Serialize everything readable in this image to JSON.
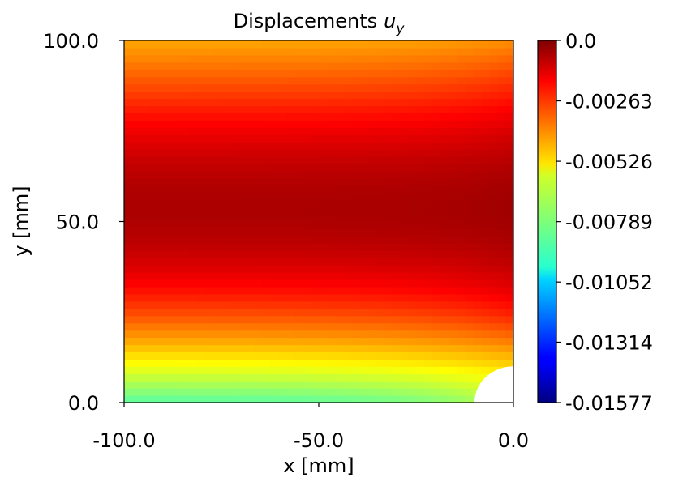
{
  "chart_data": {
    "type": "heatmap",
    "title": "Displacements",
    "title_symbol": "u",
    "title_subscript": "y",
    "xlabel": "x [mm]",
    "ylabel": "y [mm]",
    "xlim": [
      -100.0,
      0.0
    ],
    "ylim": [
      0.0,
      100.0
    ],
    "xticks": [
      -100.0,
      -50.0,
      0.0
    ],
    "xtick_labels": [
      "-100.0",
      "-50.0",
      "0.0"
    ],
    "yticks": [
      0.0,
      50.0,
      100.0
    ],
    "ytick_labels": [
      "0.0",
      "50.0",
      "100.0"
    ],
    "colormap": "jet",
    "color_range": [
      -0.01577,
      0.0
    ],
    "colorbar_ticks": [
      0.0,
      -0.00263,
      -0.00526,
      -0.00789,
      -0.01052,
      -0.01314,
      -0.01577
    ],
    "colorbar_tick_labels": [
      "0.0",
      "-0.00263",
      "-0.00526",
      "-0.00789",
      "-0.01052",
      "-0.01314",
      "-0.01577"
    ],
    "hole": {
      "center_x": 0.0,
      "center_y": 0.0,
      "radius": 10.0
    },
    "grid": false
  }
}
